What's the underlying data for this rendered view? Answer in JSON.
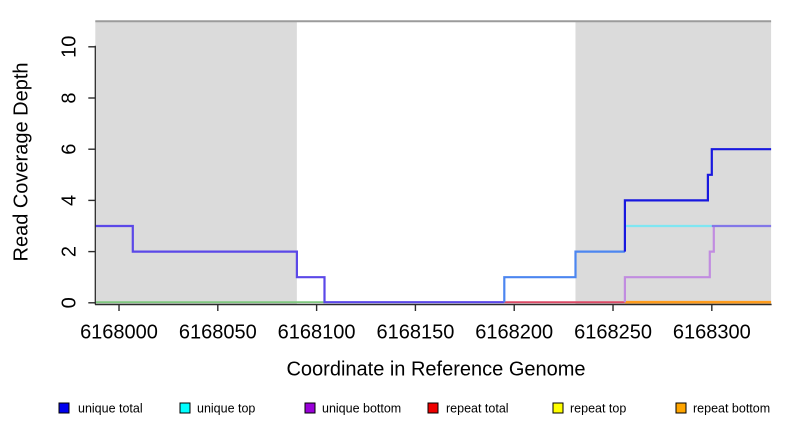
{
  "chart_data": {
    "type": "line",
    "subtype": "step-coverage-plot",
    "xlabel": "Coordinate in Reference Genome",
    "ylabel": "Read Coverage Depth",
    "xlim": [
      6167988,
      6168330
    ],
    "ylim": [
      0,
      11
    ],
    "xticks": [
      "6168000",
      "6168050",
      "6168100",
      "6168150",
      "6168200",
      "6168250",
      "6168300"
    ],
    "xtick_values": [
      6168000,
      6168050,
      6168100,
      6168150,
      6168200,
      6168250,
      6168300
    ],
    "yticks": [
      "0",
      "2",
      "4",
      "6",
      "8",
      "10"
    ],
    "ytick_values": [
      0,
      2,
      4,
      6,
      8,
      10
    ],
    "grid": "off",
    "shaded_regions": [
      {
        "name": "repeat-masked-region-left",
        "x0": 6167988,
        "x1": 6168090,
        "fill": "#dbdbdb"
      },
      {
        "name": "repeat-masked-region-right",
        "x0": 6168231,
        "x1": 6168330,
        "fill": "#dbdbdb"
      }
    ],
    "top_rule": {
      "depth": 11,
      "color": "#9b9b9b"
    },
    "rendered_lines": [
      {
        "name": "zero-line-green",
        "color": "#7fc87f",
        "width": 1.8,
        "points": [
          [
            6167988,
            0
          ],
          [
            6168104,
            0
          ]
        ]
      },
      {
        "name": "zero-line-red",
        "color": "#dc4a66",
        "width": 2,
        "points": [
          [
            6168195,
            0
          ],
          [
            6168256,
            0
          ]
        ]
      },
      {
        "name": "zero-line-orange",
        "color": "#ff9c1c",
        "width": 2.6,
        "points": [
          [
            6168256,
            0
          ],
          [
            6168330,
            0
          ]
        ]
      },
      {
        "name": "unique-top-cyan",
        "color": "#7ee6f2",
        "width": 2.2,
        "points": [
          [
            6168256,
            3
          ],
          [
            6168300,
            3
          ]
        ]
      },
      {
        "name": "unique-bottom-lilac",
        "color": "#c18ce0",
        "width": 2.2,
        "points": [
          [
            6168256,
            0
          ],
          [
            6168256,
            1
          ],
          [
            6168299,
            1
          ],
          [
            6168299,
            2
          ],
          [
            6168301,
            2
          ],
          [
            6168301,
            3
          ]
        ]
      },
      {
        "name": "unique-top-bottom-overlap-periwinkle",
        "color": "#8277e8",
        "width": 2.2,
        "points": [
          [
            6168300,
            3
          ],
          [
            6168330,
            3
          ]
        ]
      },
      {
        "name": "unique-steps-left",
        "color": "#5b48e8",
        "width": 2.2,
        "points": [
          [
            6167988,
            3
          ],
          [
            6168007,
            3
          ],
          [
            6168007,
            2
          ],
          [
            6168090,
            2
          ],
          [
            6168090,
            1
          ],
          [
            6168104,
            1
          ],
          [
            6168104,
            0
          ],
          [
            6168195,
            0
          ]
        ]
      },
      {
        "name": "unique-steps-mid",
        "color": "#4c86f0",
        "width": 2.2,
        "points": [
          [
            6168195,
            0
          ],
          [
            6168195,
            1
          ],
          [
            6168231,
            1
          ],
          [
            6168231,
            2
          ],
          [
            6168256,
            2
          ]
        ]
      },
      {
        "name": "unique-total-right",
        "color": "#1818df",
        "width": 2.2,
        "points": [
          [
            6168256,
            2
          ],
          [
            6168256,
            4
          ],
          [
            6168298,
            4
          ],
          [
            6168298,
            5
          ],
          [
            6168300,
            5
          ],
          [
            6168300,
            6
          ],
          [
            6168330,
            6
          ]
        ]
      }
    ],
    "legend_position": "bottom",
    "legend": [
      {
        "label": "unique total",
        "color": "#0000ee"
      },
      {
        "label": "unique top",
        "color": "#00ffff"
      },
      {
        "label": "unique bottom",
        "color": "#9a00d9"
      },
      {
        "label": "repeat total",
        "color": "#ee0000"
      },
      {
        "label": "repeat top",
        "color": "#ffff00"
      },
      {
        "label": "repeat bottom",
        "color": "#ffa500"
      }
    ]
  }
}
